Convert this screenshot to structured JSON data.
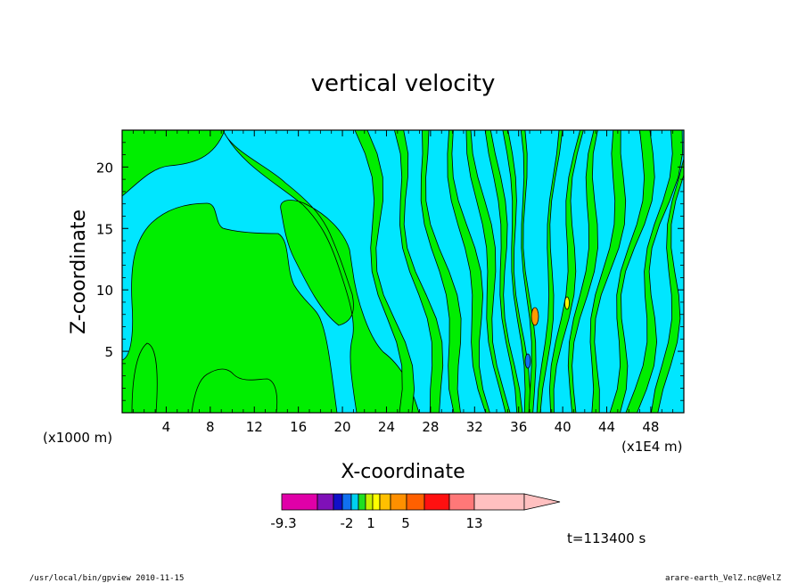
{
  "chart_data": {
    "type": "heatmap",
    "title": "vertical velocity",
    "xlabel": "X-coordinate",
    "ylabel": "Z-coordinate",
    "x_unit_left": "(x1000 m)",
    "x_unit_right": "(x1E4 m)",
    "xlim": [
      0,
      51
    ],
    "ylim": [
      0,
      23
    ],
    "x_ticks": [
      4,
      8,
      12,
      16,
      20,
      24,
      28,
      32,
      36,
      40,
      44,
      48
    ],
    "y_ticks": [
      5,
      10,
      15,
      20
    ],
    "colorbar": {
      "levels": [
        "-9.3",
        "-2",
        "1",
        "5",
        "13"
      ],
      "colors": [
        "#e000a8",
        "#7f10b8",
        "#1010c8",
        "#1070f0",
        "#00d0f0",
        "#20e020",
        "#c8f000",
        "#ffff00",
        "#ffc000",
        "#ff9000",
        "#ff6000",
        "#ff1010",
        "#ff7878",
        "#ffc0c0"
      ]
    },
    "fill_colors": {
      "negative": "#00e6ff",
      "positive": "#00ee00",
      "strong": "#ff9a00"
    }
  },
  "time_label": "t=113400 s",
  "footer": {
    "left": "/usr/local/bin/gpview  2010-11-15",
    "right": "arare-earth_VelZ.nc@VelZ"
  }
}
